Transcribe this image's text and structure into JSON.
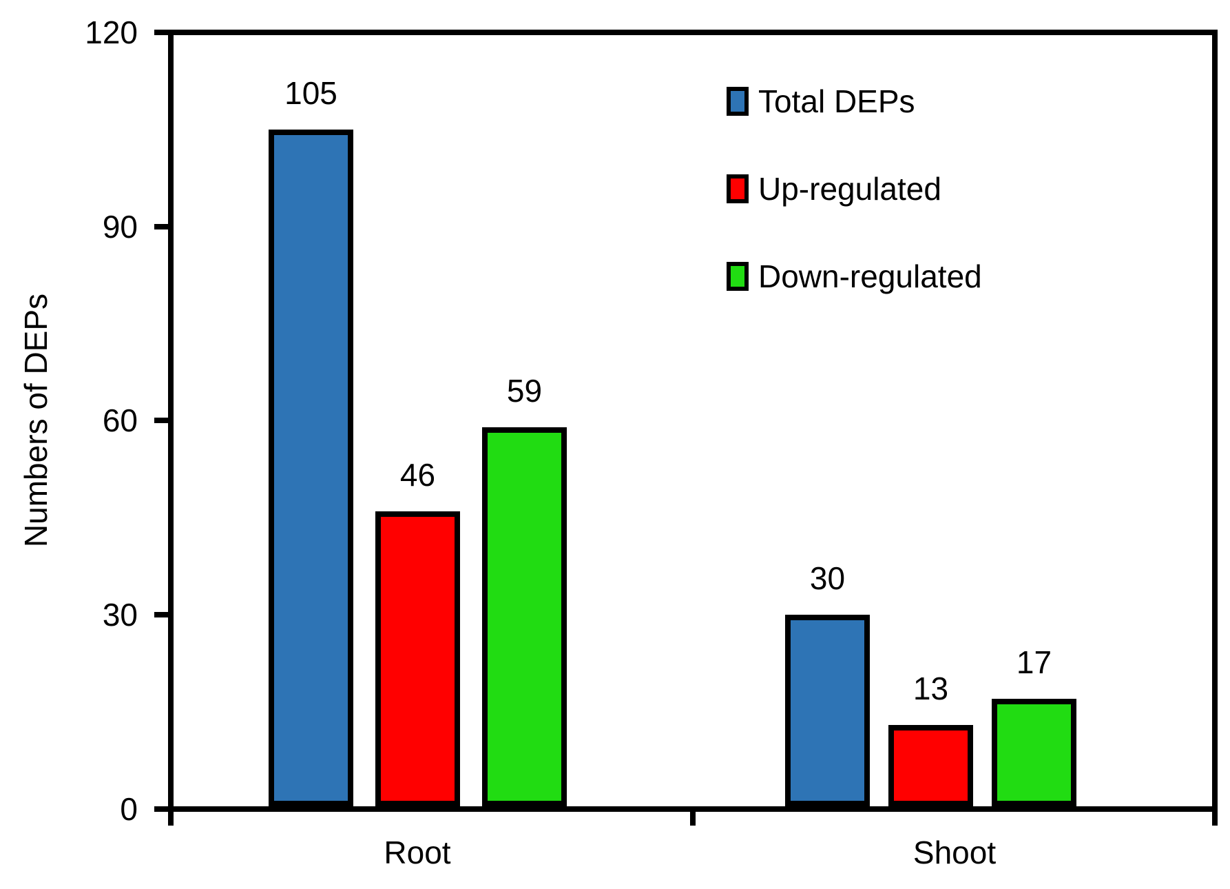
{
  "figure": {
    "background": "#FFFFFF",
    "text_color": "#000000",
    "axis_color": "#000000"
  },
  "chart_data": {
    "type": "bar",
    "title": "",
    "xlabel": "",
    "ylabel": "Numbers of DEPs",
    "categories": [
      "Root",
      "Shoot"
    ],
    "series": [
      {
        "name": "Total DEPs",
        "color": "#2E74B5",
        "values": [
          105,
          30
        ]
      },
      {
        "name": "Up-regulated",
        "color": "#FF0000",
        "values": [
          46,
          13
        ]
      },
      {
        "name": "Down-regulated",
        "color": "#21DC12",
        "values": [
          59,
          17
        ]
      }
    ],
    "ylim": [
      0,
      120
    ],
    "yticks": [
      0,
      30,
      60,
      90,
      120
    ],
    "grid": false,
    "legend_position": "top-right",
    "bar_edge_color": "#000000",
    "value_labels_shown": true
  }
}
